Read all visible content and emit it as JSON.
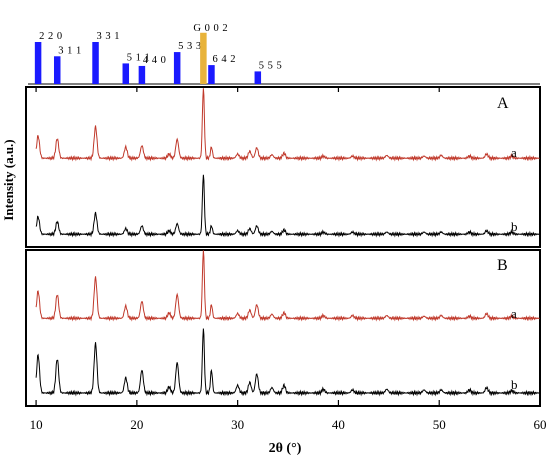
{
  "chart_data": {
    "type": "line",
    "xlabel": "2θ (°)",
    "ylabel": "Intensity (a.u.)",
    "xlim": [
      9,
      60
    ],
    "x_ticks": [
      10,
      20,
      30,
      40,
      50,
      60
    ],
    "reference_bars": [
      {
        "label": "2 2 0",
        "x": 10.2,
        "intensity": 1.0,
        "color": "#1a1aff"
      },
      {
        "label": "3 1 1",
        "x": 12.1,
        "intensity": 0.66,
        "color": "#1a1aff"
      },
      {
        "label": "3 3 1",
        "x": 15.9,
        "intensity": 1.0,
        "color": "#1a1aff"
      },
      {
        "label": "5 1 1",
        "x": 18.9,
        "intensity": 0.49,
        "color": "#1a1aff"
      },
      {
        "label": "4 4 0",
        "x": 20.5,
        "intensity": 0.43,
        "color": "#1a1aff"
      },
      {
        "label": "5 3 3",
        "x": 24.0,
        "intensity": 0.76,
        "color": "#1a1aff"
      },
      {
        "label": "G 0 0 2",
        "x": 26.6,
        "intensity": 1.22,
        "color": "#e8b33a"
      },
      {
        "label": "6 4 2",
        "x": 27.4,
        "intensity": 0.45,
        "color": "#1a1aff"
      },
      {
        "label": "5 5 5",
        "x": 32.0,
        "intensity": 0.3,
        "color": "#1a1aff"
      }
    ],
    "panels": [
      {
        "label": "A",
        "series": [
          {
            "name": "a",
            "color": "#c0392b",
            "baseline": 0.08,
            "peaks": [
              {
                "x": 10.2,
                "h": 0.32
              },
              {
                "x": 12.1,
                "h": 0.28
              },
              {
                "x": 15.9,
                "h": 0.45
              },
              {
                "x": 18.9,
                "h": 0.16
              },
              {
                "x": 20.5,
                "h": 0.18
              },
              {
                "x": 23.2,
                "h": 0.06
              },
              {
                "x": 24.0,
                "h": 0.27
              },
              {
                "x": 26.6,
                "h": 1.0
              },
              {
                "x": 27.4,
                "h": 0.16
              },
              {
                "x": 30.0,
                "h": 0.06
              },
              {
                "x": 31.2,
                "h": 0.1
              },
              {
                "x": 31.9,
                "h": 0.15
              },
              {
                "x": 33.4,
                "h": 0.05
              },
              {
                "x": 34.6,
                "h": 0.07
              },
              {
                "x": 38.5,
                "h": 0.03
              },
              {
                "x": 41.4,
                "h": 0.03
              },
              {
                "x": 44.8,
                "h": 0.04
              },
              {
                "x": 48.5,
                "h": 0.03
              },
              {
                "x": 50.2,
                "h": 0.04
              },
              {
                "x": 53.0,
                "h": 0.03
              },
              {
                "x": 54.7,
                "h": 0.06
              },
              {
                "x": 57.2,
                "h": 0.03
              }
            ]
          },
          {
            "name": "b",
            "color": "#000000",
            "baseline": 0.08,
            "peaks": [
              {
                "x": 10.2,
                "h": 0.25
              },
              {
                "x": 12.1,
                "h": 0.18
              },
              {
                "x": 15.9,
                "h": 0.3
              },
              {
                "x": 18.9,
                "h": 0.08
              },
              {
                "x": 20.5,
                "h": 0.12
              },
              {
                "x": 23.2,
                "h": 0.05
              },
              {
                "x": 24.0,
                "h": 0.15
              },
              {
                "x": 26.6,
                "h": 0.85
              },
              {
                "x": 27.4,
                "h": 0.12
              },
              {
                "x": 30.0,
                "h": 0.05
              },
              {
                "x": 31.2,
                "h": 0.08
              },
              {
                "x": 31.9,
                "h": 0.12
              },
              {
                "x": 33.4,
                "h": 0.04
              },
              {
                "x": 34.6,
                "h": 0.06
              },
              {
                "x": 38.5,
                "h": 0.03
              },
              {
                "x": 41.4,
                "h": 0.03
              },
              {
                "x": 44.8,
                "h": 0.03
              },
              {
                "x": 48.5,
                "h": 0.03
              },
              {
                "x": 50.2,
                "h": 0.03
              },
              {
                "x": 53.0,
                "h": 0.03
              },
              {
                "x": 54.7,
                "h": 0.05
              },
              {
                "x": 57.2,
                "h": 0.03
              }
            ]
          }
        ]
      },
      {
        "label": "B",
        "series": [
          {
            "name": "a",
            "color": "#c0392b",
            "baseline": 0.08,
            "peaks": [
              {
                "x": 10.2,
                "h": 0.4
              },
              {
                "x": 12.1,
                "h": 0.35
              },
              {
                "x": 15.9,
                "h": 0.6
              },
              {
                "x": 18.9,
                "h": 0.18
              },
              {
                "x": 20.5,
                "h": 0.25
              },
              {
                "x": 23.2,
                "h": 0.08
              },
              {
                "x": 24.0,
                "h": 0.35
              },
              {
                "x": 26.6,
                "h": 1.0
              },
              {
                "x": 27.4,
                "h": 0.2
              },
              {
                "x": 30.0,
                "h": 0.07
              },
              {
                "x": 31.2,
                "h": 0.12
              },
              {
                "x": 31.9,
                "h": 0.2
              },
              {
                "x": 33.4,
                "h": 0.06
              },
              {
                "x": 34.6,
                "h": 0.08
              },
              {
                "x": 38.5,
                "h": 0.04
              },
              {
                "x": 41.4,
                "h": 0.04
              },
              {
                "x": 44.8,
                "h": 0.04
              },
              {
                "x": 48.5,
                "h": 0.03
              },
              {
                "x": 50.2,
                "h": 0.04
              },
              {
                "x": 53.0,
                "h": 0.03
              },
              {
                "x": 54.7,
                "h": 0.07
              },
              {
                "x": 57.2,
                "h": 0.03
              }
            ]
          },
          {
            "name": "b",
            "color": "#000000",
            "baseline": 0.08,
            "peaks": [
              {
                "x": 10.2,
                "h": 0.5
              },
              {
                "x": 12.1,
                "h": 0.45
              },
              {
                "x": 15.9,
                "h": 0.65
              },
              {
                "x": 18.9,
                "h": 0.2
              },
              {
                "x": 20.5,
                "h": 0.3
              },
              {
                "x": 23.2,
                "h": 0.08
              },
              {
                "x": 24.0,
                "h": 0.4
              },
              {
                "x": 26.6,
                "h": 0.85
              },
              {
                "x": 27.4,
                "h": 0.3
              },
              {
                "x": 30.0,
                "h": 0.1
              },
              {
                "x": 31.2,
                "h": 0.14
              },
              {
                "x": 31.9,
                "h": 0.25
              },
              {
                "x": 33.4,
                "h": 0.07
              },
              {
                "x": 34.6,
                "h": 0.1
              },
              {
                "x": 38.5,
                "h": 0.05
              },
              {
                "x": 41.4,
                "h": 0.04
              },
              {
                "x": 44.8,
                "h": 0.05
              },
              {
                "x": 48.5,
                "h": 0.04
              },
              {
                "x": 50.2,
                "h": 0.04
              },
              {
                "x": 53.0,
                "h": 0.04
              },
              {
                "x": 54.7,
                "h": 0.07
              },
              {
                "x": 57.2,
                "h": 0.03
              }
            ]
          }
        ]
      }
    ]
  }
}
